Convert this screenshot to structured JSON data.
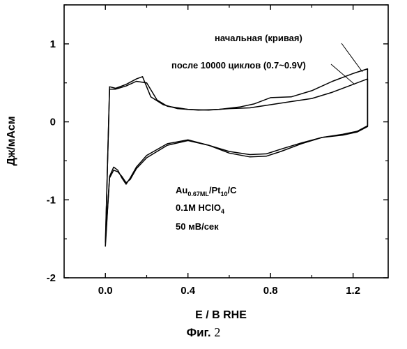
{
  "chart_data": {
    "type": "line",
    "xlabel": "E / B RHE",
    "ylabel": "Дж/мАсм",
    "xlim": [
      -0.2,
      1.37
    ],
    "ylim": [
      -2.0,
      1.5
    ],
    "xticks": [
      0.0,
      0.4,
      0.8,
      1.2
    ],
    "xtick_labels": [
      "0.0",
      "0.4",
      "0.8",
      "1.2"
    ],
    "yticks": [
      -2,
      -1,
      0,
      1
    ],
    "ytick_labels": [
      "-2",
      "-1",
      "0",
      "1"
    ],
    "grid": false,
    "series": [
      {
        "name": "начальная (кривая)",
        "x": [
          0.0,
          0.02,
          0.05,
          0.1,
          0.15,
          0.18,
          0.22,
          0.28,
          0.35,
          0.45,
          0.55,
          0.65,
          0.72,
          0.8,
          0.9,
          1.0,
          1.1,
          1.2,
          1.27,
          1.27,
          1.22,
          1.15,
          1.05,
          0.95,
          0.85,
          0.78,
          0.7,
          0.6,
          0.5,
          0.4,
          0.3,
          0.2,
          0.15,
          0.12,
          0.1,
          0.08,
          0.06,
          0.04,
          0.02,
          0.0
        ],
        "y": [
          -1.6,
          0.45,
          0.43,
          0.48,
          0.55,
          0.58,
          0.32,
          0.22,
          0.17,
          0.15,
          0.16,
          0.19,
          0.23,
          0.31,
          0.32,
          0.4,
          0.52,
          0.62,
          0.68,
          -0.05,
          -0.12,
          -0.16,
          -0.2,
          -0.28,
          -0.38,
          -0.44,
          -0.45,
          -0.4,
          -0.3,
          -0.23,
          -0.28,
          -0.43,
          -0.58,
          -0.72,
          -0.8,
          -0.72,
          -0.62,
          -0.58,
          -0.7,
          -1.6
        ]
      },
      {
        "name": "после 10000 циклов (0.7~0.9V)",
        "x": [
          0.0,
          0.02,
          0.05,
          0.1,
          0.15,
          0.2,
          0.25,
          0.3,
          0.4,
          0.5,
          0.6,
          0.7,
          0.8,
          0.9,
          1.0,
          1.1,
          1.2,
          1.27,
          1.27,
          1.22,
          1.15,
          1.05,
          0.95,
          0.85,
          0.78,
          0.7,
          0.6,
          0.5,
          0.4,
          0.3,
          0.2,
          0.15,
          0.12,
          0.1,
          0.08,
          0.06,
          0.04,
          0.02,
          0.0
        ],
        "y": [
          -1.55,
          0.42,
          0.42,
          0.46,
          0.52,
          0.5,
          0.28,
          0.2,
          0.16,
          0.15,
          0.17,
          0.18,
          0.22,
          0.26,
          0.3,
          0.38,
          0.48,
          0.55,
          -0.06,
          -0.13,
          -0.17,
          -0.2,
          -0.27,
          -0.35,
          -0.41,
          -0.42,
          -0.38,
          -0.3,
          -0.24,
          -0.3,
          -0.46,
          -0.6,
          -0.74,
          -0.78,
          -0.7,
          -0.64,
          -0.62,
          -0.72,
          -1.55
        ]
      }
    ],
    "annotations": [
      "начальная (кривая)",
      "после 10000 циклов (0.7~0.9V)"
    ],
    "conditions": {
      "catalyst_base": "Au",
      "catalyst_sub1": "0.67ML",
      "catalyst_mid": "/Pt",
      "catalyst_sub2": "10",
      "catalyst_end": "/C",
      "electrolyte_base": "0.1M HClO",
      "electrolyte_sub": "4",
      "scan_rate": "50 мВ/сек"
    }
  },
  "figure_caption": {
    "label": "Фиг.",
    "number": "2"
  }
}
